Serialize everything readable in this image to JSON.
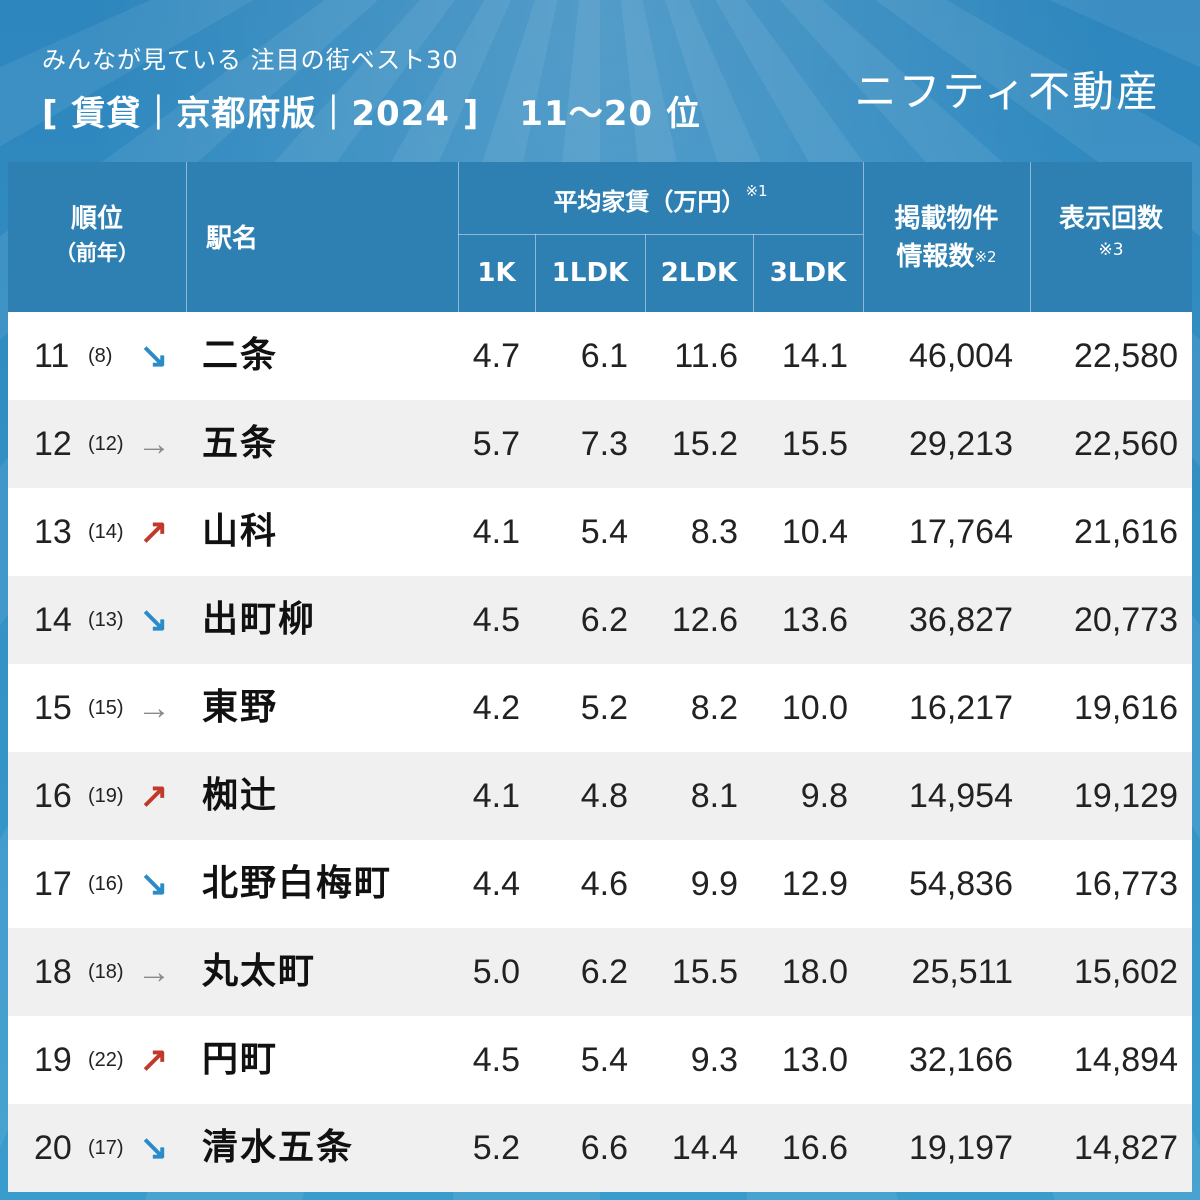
{
  "header": {
    "subtitle": "みんなが見ている 注目の街ベスト30",
    "title": "[ 賃貸｜京都府版｜2024 ]",
    "range": "11〜20 位",
    "brand": "ニフティ不動産"
  },
  "chart_data": {
    "type": "table",
    "columns": {
      "rank": "順位",
      "rank_prev": "（前年）",
      "station": "駅名",
      "rent_group": "平均家賃（万円）",
      "rent_note": "※1",
      "rent_1k": "1K",
      "rent_1ldk": "1LDK",
      "rent_2ldk": "2LDK",
      "rent_3ldk": "3LDK",
      "listings_line1": "掲載物件",
      "listings_line2": "情報数",
      "listings_note": "※2",
      "views": "表示回数",
      "views_note": "※3"
    },
    "rows": [
      {
        "rank": "11",
        "prev": "(8)",
        "trend": "down",
        "station": "二条",
        "k1": "4.7",
        "ldk1": "6.1",
        "ldk2": "11.6",
        "ldk3": "14.1",
        "listings": "46,004",
        "views": "22,580"
      },
      {
        "rank": "12",
        "prev": "(12)",
        "trend": "flat",
        "station": "五条",
        "k1": "5.7",
        "ldk1": "7.3",
        "ldk2": "15.2",
        "ldk3": "15.5",
        "listings": "29,213",
        "views": "22,560"
      },
      {
        "rank": "13",
        "prev": "(14)",
        "trend": "up",
        "station": "山科",
        "k1": "4.1",
        "ldk1": "5.4",
        "ldk2": "8.3",
        "ldk3": "10.4",
        "listings": "17,764",
        "views": "21,616"
      },
      {
        "rank": "14",
        "prev": "(13)",
        "trend": "down",
        "station": "出町柳",
        "k1": "4.5",
        "ldk1": "6.2",
        "ldk2": "12.6",
        "ldk3": "13.6",
        "listings": "36,827",
        "views": "20,773"
      },
      {
        "rank": "15",
        "prev": "(15)",
        "trend": "flat",
        "station": "東野",
        "k1": "4.2",
        "ldk1": "5.2",
        "ldk2": "8.2",
        "ldk3": "10.0",
        "listings": "16,217",
        "views": "19,616"
      },
      {
        "rank": "16",
        "prev": "(19)",
        "trend": "up",
        "station": "椥辻",
        "k1": "4.1",
        "ldk1": "4.8",
        "ldk2": "8.1",
        "ldk3": "9.8",
        "listings": "14,954",
        "views": "19,129"
      },
      {
        "rank": "17",
        "prev": "(16)",
        "trend": "down",
        "station": "北野白梅町",
        "k1": "4.4",
        "ldk1": "4.6",
        "ldk2": "9.9",
        "ldk3": "12.9",
        "listings": "54,836",
        "views": "16,773"
      },
      {
        "rank": "18",
        "prev": "(18)",
        "trend": "flat",
        "station": "丸太町",
        "k1": "5.0",
        "ldk1": "6.2",
        "ldk2": "15.5",
        "ldk3": "18.0",
        "listings": "25,511",
        "views": "15,602"
      },
      {
        "rank": "19",
        "prev": "(22)",
        "trend": "up",
        "station": "円町",
        "k1": "4.5",
        "ldk1": "5.4",
        "ldk2": "9.3",
        "ldk3": "13.0",
        "listings": "32,166",
        "views": "14,894"
      },
      {
        "rank": "20",
        "prev": "(17)",
        "trend": "down",
        "station": "清水五条",
        "k1": "5.2",
        "ldk1": "6.6",
        "ldk2": "14.4",
        "ldk3": "16.6",
        "listings": "19,197",
        "views": "14,827"
      }
    ]
  },
  "trend_icons": {
    "down": "arrow-down-right-icon",
    "flat": "arrow-right-icon",
    "up": "arrow-up-right-icon"
  },
  "colors": {
    "header_bg": "#2e7fb2",
    "down": "#2a8bc9",
    "flat": "#8a8a8a",
    "up": "#c0392b"
  }
}
